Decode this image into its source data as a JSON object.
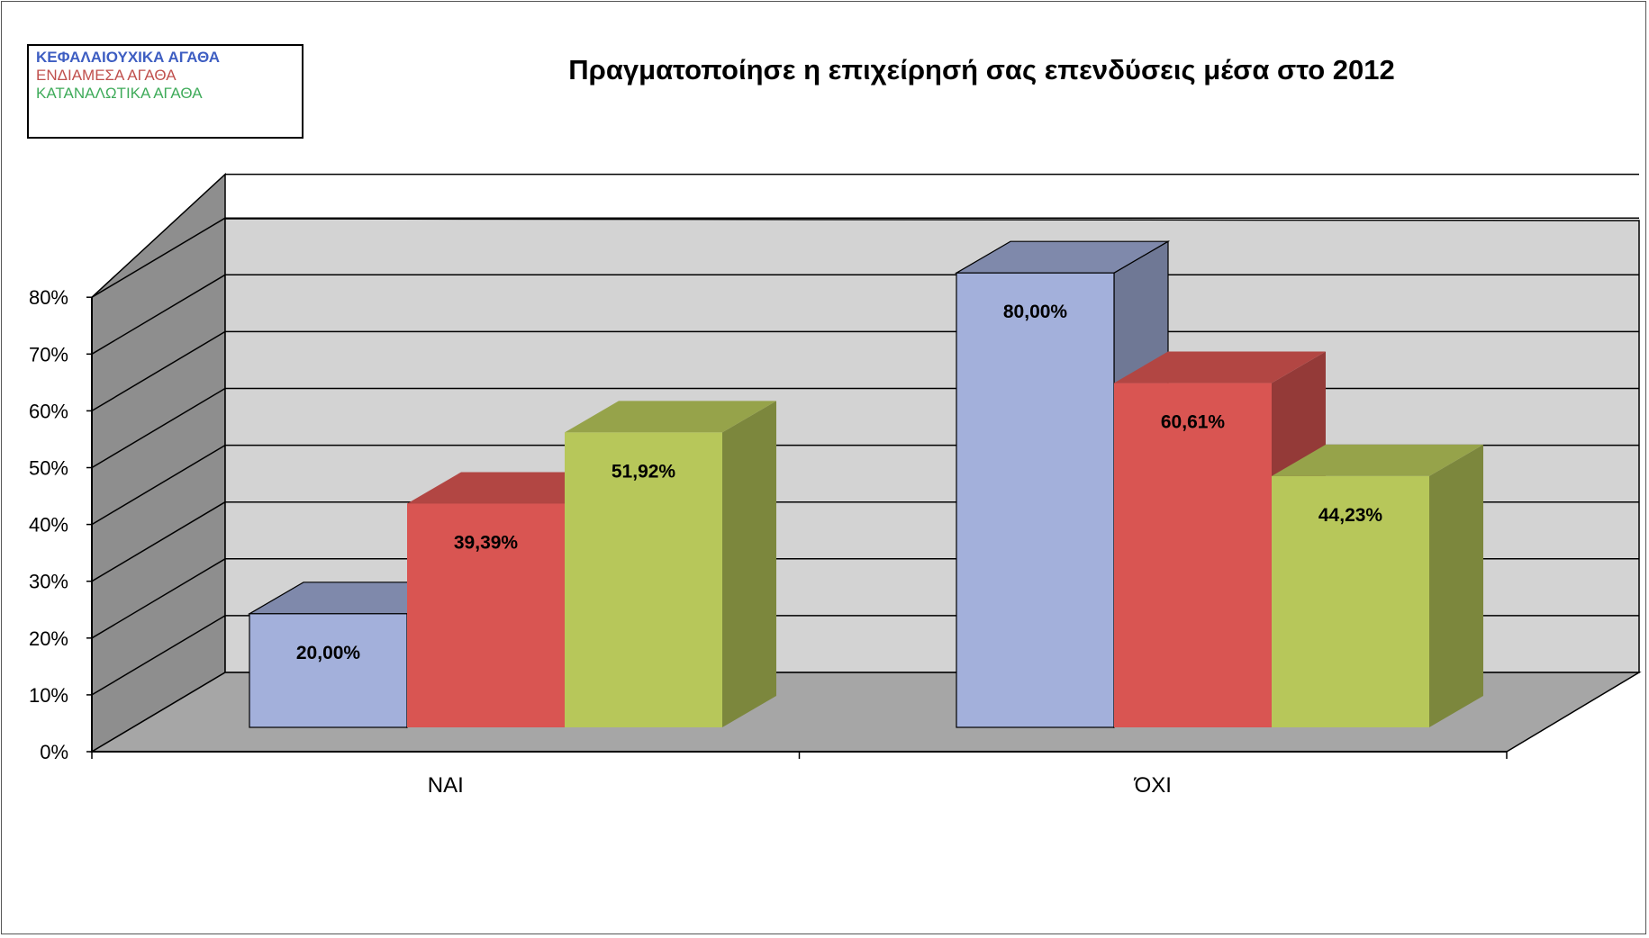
{
  "chart_data": {
    "type": "bar",
    "title": "Πραγματοποίησε η επιχείρησή σας επενδύσεις μέσα στο 2012",
    "categories": [
      "ΝΑΙ",
      "ΌΧΙ"
    ],
    "series": [
      {
        "name": "ΚΕΦΑΛΑΙΟΥΧΙΚΑ ΑΓΑΘΑ",
        "values": [
          20.0,
          80.0
        ],
        "labels": [
          "20,00%",
          "80,00%"
        ],
        "color": "#a3b0db",
        "legend_color": "#3e5ec2"
      },
      {
        "name": "ΕΝΔΙΑΜΕΣΑ ΑΓΑΘΑ",
        "values": [
          39.39,
          60.61
        ],
        "labels": [
          "39,39%",
          "60,61%"
        ],
        "color": "#d95552",
        "legend_color": "#c0504d"
      },
      {
        "name": "ΚΑΤΑΝΑΛΩΤΙΚΑ ΑΓΑΘΑ",
        "values": [
          51.92,
          44.23
        ],
        "labels": [
          "51,92%",
          "44,23%"
        ],
        "color": "#b7c75a",
        "legend_color": "#3fab5a"
      }
    ],
    "y_ticks": [
      "0%",
      "10%",
      "20%",
      "30%",
      "40%",
      "50%",
      "60%",
      "70%",
      "80%"
    ],
    "ylim": [
      0,
      80
    ],
    "grid": true,
    "style": "3d-clustered-column",
    "legend_position": "top-left"
  }
}
